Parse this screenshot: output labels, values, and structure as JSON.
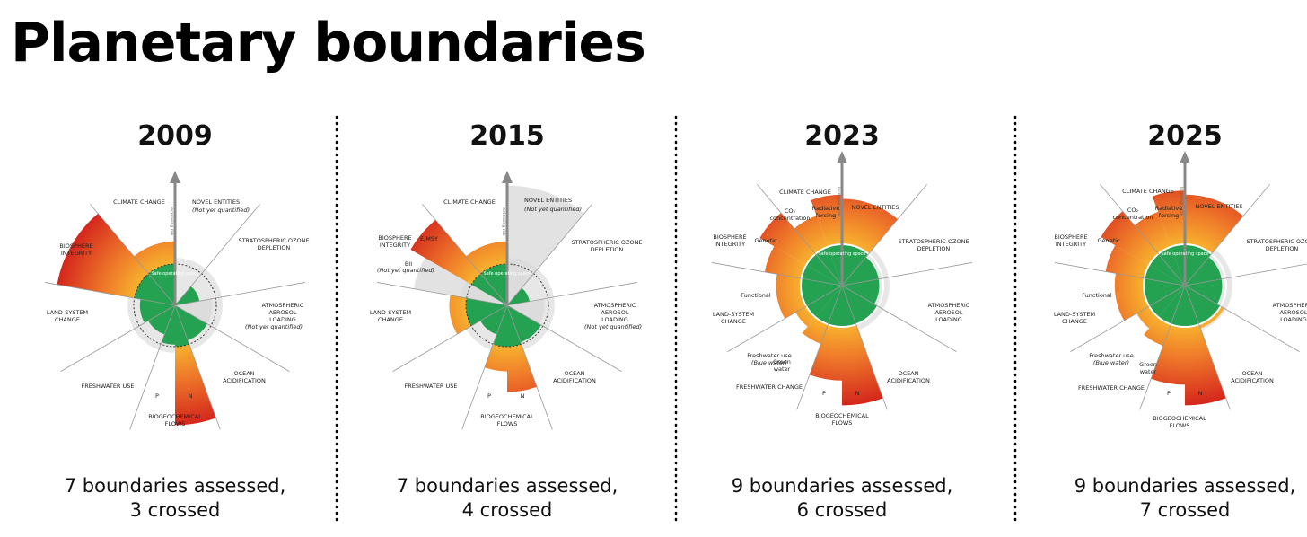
{
  "title": "Planetary boundaries",
  "panels": [
    {
      "year": "2009",
      "safe": "Safe operating space",
      "risk": "Increasing risk",
      "labels": [
        [
          "CLIMATE CHANGE"
        ],
        [
          "NOVEL ENTITIES"
        ],
        [
          "(Not yet quantified)"
        ],
        [
          "STRATOSPHERIC OZONE",
          "DEPLETION"
        ],
        [
          "ATMOSPHERIC",
          "AEROSOL",
          "LOADING"
        ],
        [
          "(Not yet quantified)"
        ],
        [
          "OCEAN",
          "ACIDIFICATION"
        ],
        [
          "BIOGEOCHEMICAL",
          "FLOWS"
        ],
        [
          "P"
        ],
        [
          "N"
        ],
        [
          "FRESHWATER USE"
        ],
        [
          "LAND-SYSTEM",
          "CHANGE"
        ],
        [
          "BIOSPHERE",
          "INTEGRITY"
        ]
      ],
      "caption": [
        "7 boundaries assessed,",
        "3 crossed"
      ]
    },
    {
      "year": "2015",
      "safe": "Safe operating space",
      "risk": "Increasing risk",
      "labels": [
        [
          "CLIMATE CHANGE"
        ],
        [
          "NOVEL ENTITIES"
        ],
        [
          "(Not yet quantified)"
        ],
        [
          "STRATOSPHERIC OZONE",
          "DEPLETION"
        ],
        [
          "ATMOSPHERIC",
          "AEROSOL",
          "LOADING"
        ],
        [
          "(Not yet quantified)"
        ],
        [
          "OCEAN",
          "ACIDIFICATION"
        ],
        [
          "BIOGEOCHEMICAL",
          "FLOWS"
        ],
        [
          "P"
        ],
        [
          "N"
        ],
        [
          "FRESHWATER USE"
        ],
        [
          "LAND-SYSTEM",
          "CHANGE"
        ],
        [
          "BIOSPHERE",
          "INTEGRITY"
        ],
        [
          "E/MSY"
        ],
        [
          "BII"
        ],
        [
          "(Not yet quantified)"
        ]
      ],
      "caption": [
        "7 boundaries assessed,",
        "4 crossed"
      ]
    },
    {
      "year": "2023",
      "safe": "Safe operating space",
      "risk": "Increasing risk",
      "labels": [
        [
          "CLIMATE CHANGE"
        ],
        [
          "CO₂",
          "concentration"
        ],
        [
          "Radiative",
          "forcing"
        ],
        [
          "NOVEL ENTITIES"
        ],
        [
          "STRATOSPHERIC OZONE",
          "DEPLETION"
        ],
        [
          "ATMOSPHERIC",
          "AEROSOL",
          "LOADING"
        ],
        [
          "OCEAN",
          "ACIDIFICATION"
        ],
        [
          "BIOGEOCHEMICAL",
          "FLOWS"
        ],
        [
          "P"
        ],
        [
          "N"
        ],
        [
          "FRESHWATER CHANGE"
        ],
        [
          "Freshwater use",
          "(Blue water)"
        ],
        [
          "Green",
          "water"
        ],
        [
          "LAND-SYSTEM",
          "CHANGE"
        ],
        [
          "BIOSPHERE",
          "INTEGRITY"
        ],
        [
          "Genetic"
        ],
        [
          "Functional"
        ]
      ],
      "caption": [
        "9 boundaries assessed,",
        "6 crossed"
      ]
    },
    {
      "year": "2025",
      "safe": "Safe operating space",
      "risk": "Increasing risk",
      "labels": [
        [
          "CLIMATE CHANGE"
        ],
        [
          "CO₂",
          "concentration"
        ],
        [
          "Radiative",
          "forcing"
        ],
        [
          "NOVEL ENTITIES"
        ],
        [
          "STRATOSPHERIC OZONE",
          "DEPLETION"
        ],
        [
          "ATMOSPHERIC",
          "AEROSOL",
          "LOADING"
        ],
        [
          "OCEAN",
          "ACIDIFICATION"
        ],
        [
          "BIOGEOCHEMICAL",
          "FLOWS"
        ],
        [
          "P"
        ],
        [
          "N"
        ],
        [
          "FRESHWATER CHANGE"
        ],
        [
          "Freshwater use",
          "(Blue water)"
        ],
        [
          "Green",
          "water"
        ],
        [
          "LAND-SYSTEM",
          "CHANGE"
        ],
        [
          "BIOSPHERE",
          "INTEGRITY"
        ],
        [
          "Genetic"
        ],
        [
          "Functional"
        ]
      ],
      "caption": [
        "9 boundaries assessed,",
        "7 crossed"
      ]
    }
  ]
}
